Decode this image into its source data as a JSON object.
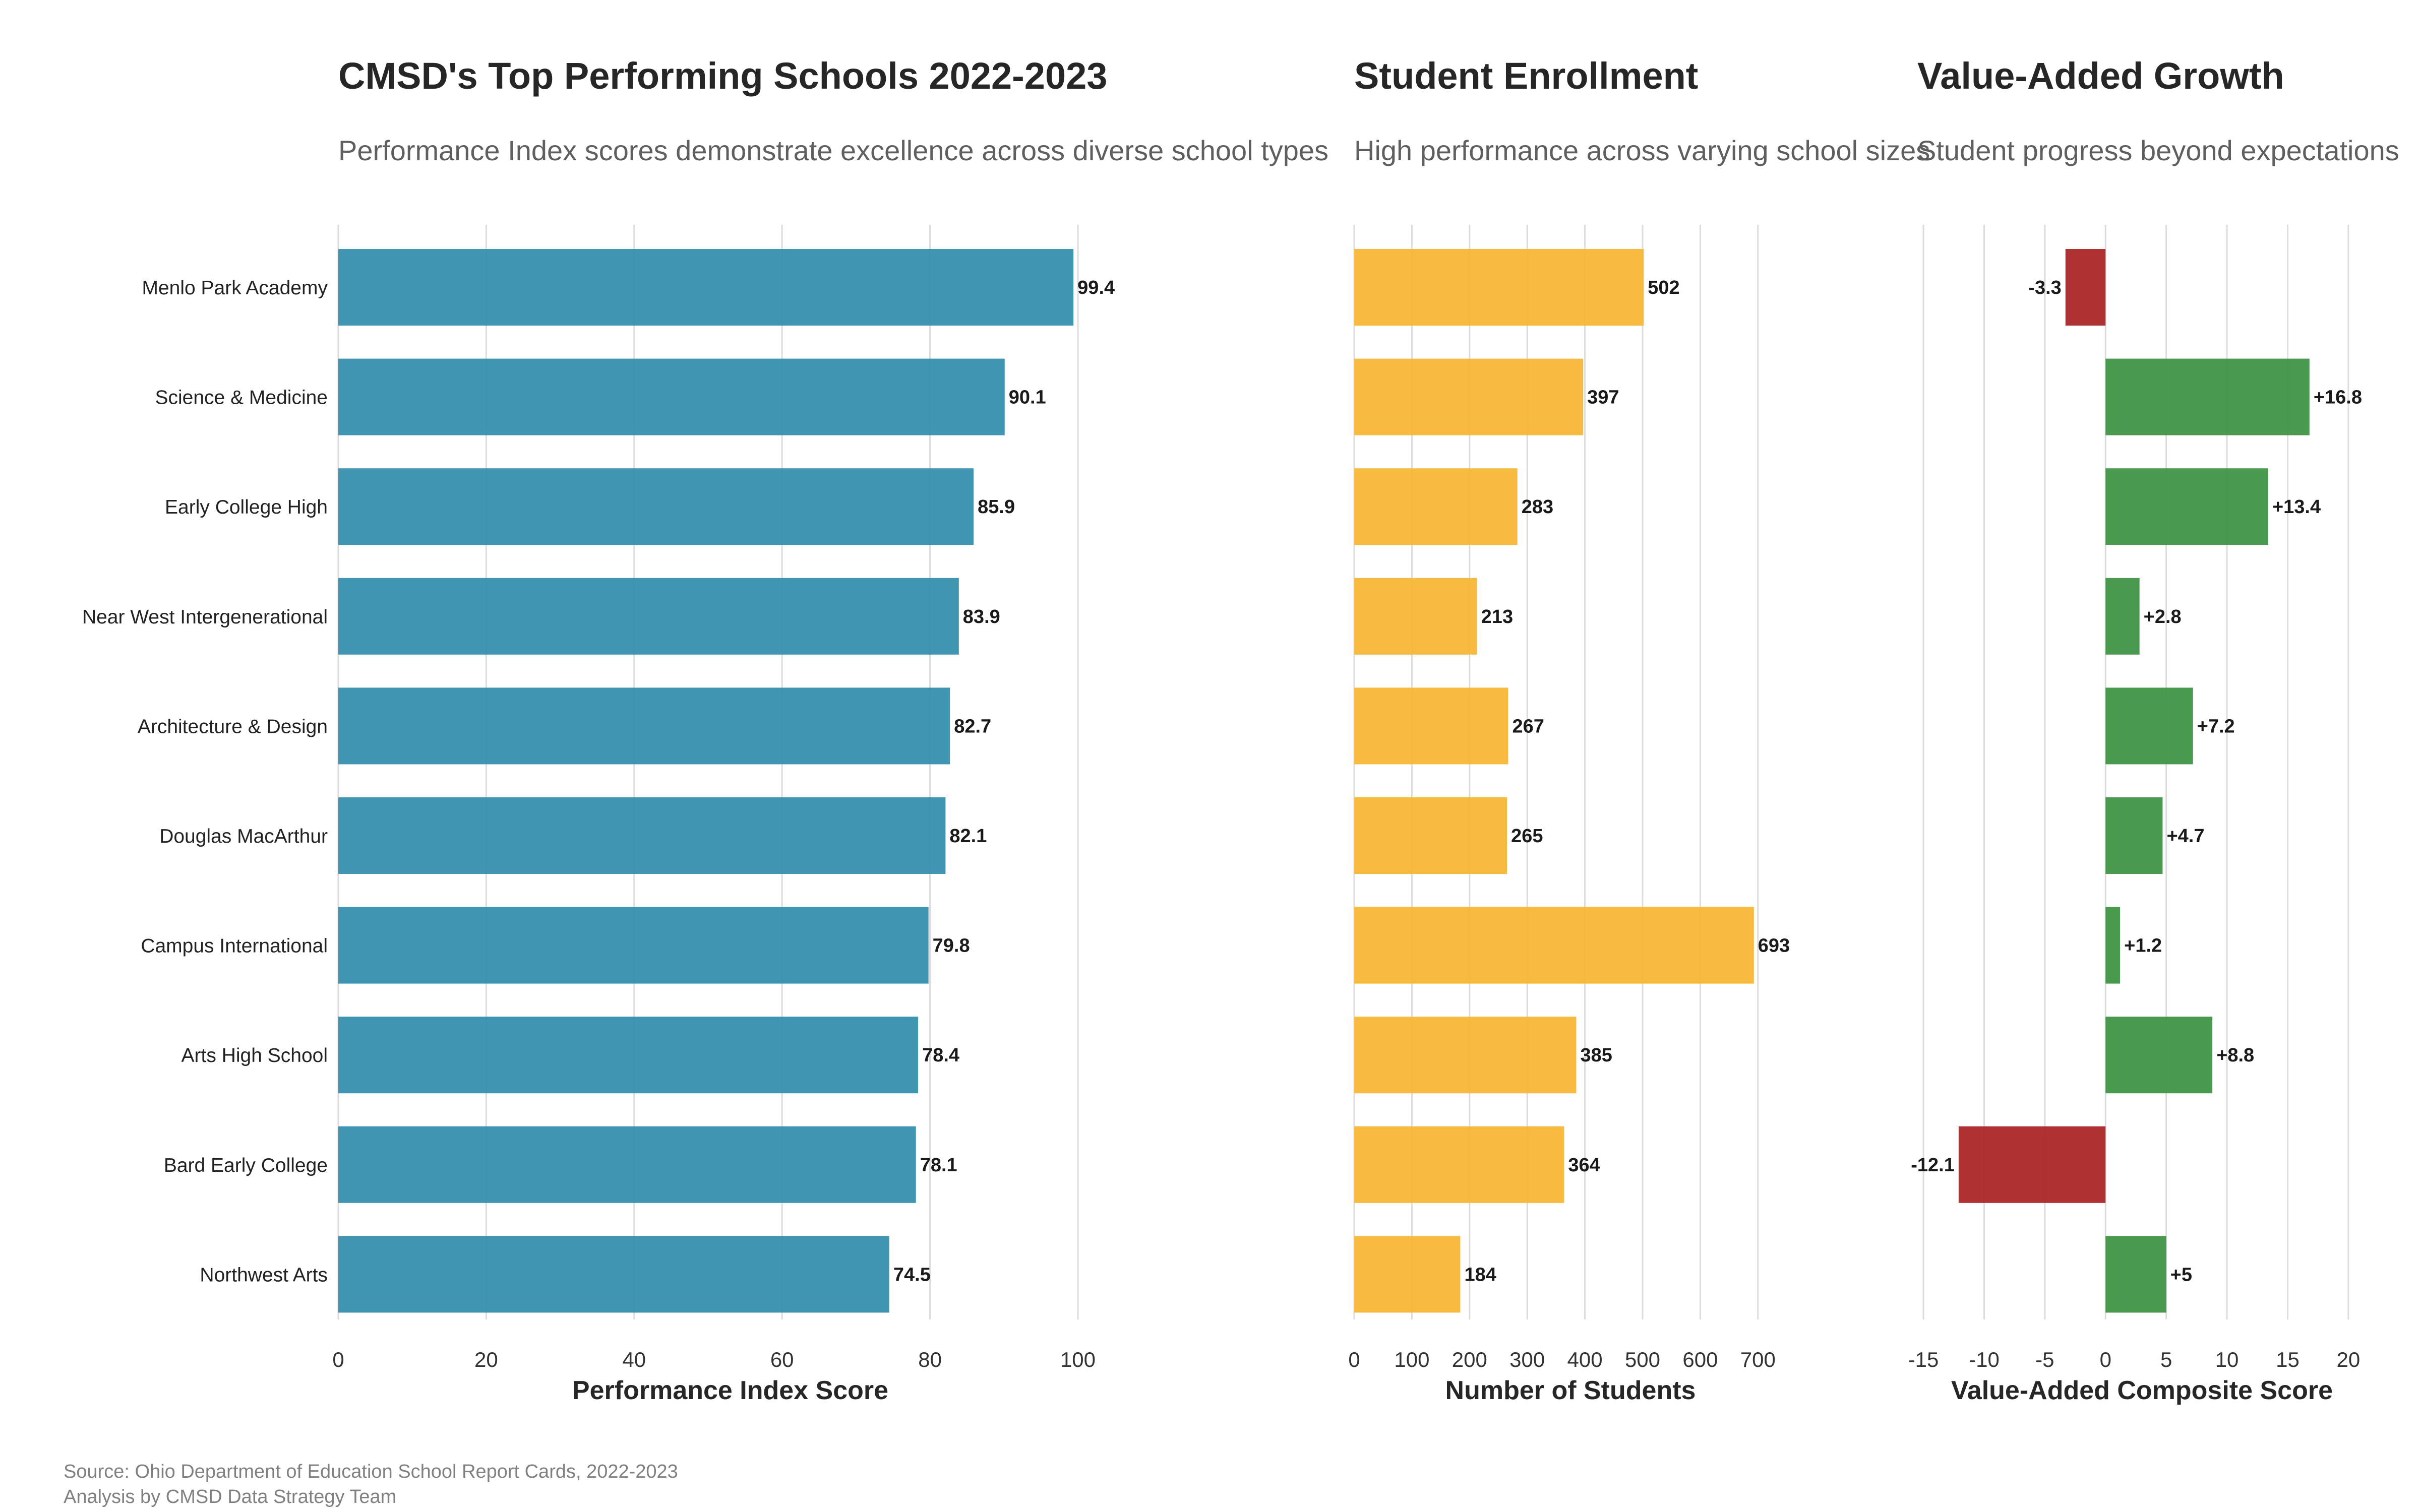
{
  "footer": {
    "source": "Source: Ohio Department of Education School Report Cards, 2022-2023",
    "analysis": "Analysis by CMSD Data Strategy Team"
  },
  "chart_data": [
    {
      "type": "bar",
      "orientation": "horizontal",
      "title": "CMSD's Top Performing Schools 2022-2023",
      "subtitle": "Performance Index scores demonstrate excellence across diverse school types",
      "xlabel": "Performance Index Score",
      "xlim": [
        0,
        106
      ],
      "xticks": [
        0,
        20,
        40,
        60,
        80,
        100
      ],
      "grid": true,
      "color": "#2f8dab",
      "categories": [
        "Menlo Park Academy",
        "Science & Medicine",
        "Early College High",
        "Near West Intergenerational",
        "Architecture & Design",
        "Douglas MacArthur",
        "Campus International",
        "Arts High School",
        "Bard Early College",
        "Northwest Arts"
      ],
      "values": [
        99.4,
        90.1,
        85.9,
        83.9,
        82.7,
        82.1,
        79.8,
        78.4,
        78.1,
        74.5
      ],
      "labels": [
        "99.4",
        "90.1",
        "85.9",
        "83.9",
        "82.7",
        "82.1",
        "79.8",
        "78.4",
        "78.1",
        "74.5"
      ]
    },
    {
      "type": "bar",
      "orientation": "horizontal",
      "title": "Student Enrollment",
      "subtitle": "High performance across varying school sizes",
      "xlabel": "Number of Students",
      "xlim": [
        0,
        750
      ],
      "xticks": [
        0,
        100,
        200,
        300,
        400,
        500,
        600,
        700
      ],
      "grid": true,
      "color": "#f9b430",
      "categories": [
        "Menlo Park Academy",
        "Science & Medicine",
        "Early College High",
        "Near West Intergenerational",
        "Architecture & Design",
        "Douglas MacArthur",
        "Campus International",
        "Arts High School",
        "Bard Early College",
        "Northwest Arts"
      ],
      "values": [
        502,
        397,
        283,
        213,
        267,
        265,
        693,
        385,
        364,
        184
      ],
      "labels": [
        "502",
        "397",
        "283",
        "213",
        "267",
        "265",
        "693",
        "385",
        "364",
        "184"
      ]
    },
    {
      "type": "bar",
      "orientation": "horizontal",
      "title": "Value-Added Growth",
      "subtitle": "Student progress beyond expectations",
      "xlabel": "Value-Added Composite Score",
      "xlim": [
        -15.5,
        21.5
      ],
      "xticks": [
        -15,
        -10,
        -5,
        0,
        5,
        10,
        15,
        20
      ],
      "grid": true,
      "color_positive": "#3a9140",
      "color_negative": "#a91f23",
      "categories": [
        "Menlo Park Academy",
        "Science & Medicine",
        "Early College High",
        "Near West Intergenerational",
        "Architecture & Design",
        "Douglas MacArthur",
        "Campus International",
        "Arts High School",
        "Bard Early College",
        "Northwest Arts"
      ],
      "values": [
        -3.3,
        16.8,
        13.4,
        2.8,
        7.2,
        4.7,
        1.2,
        8.8,
        -12.1,
        5
      ],
      "labels": [
        "-3.3",
        "+16.8",
        "+13.4",
        "+2.8",
        "+7.2",
        "+4.7",
        "+1.2",
        "+8.8",
        "-12.1",
        "+5"
      ]
    }
  ]
}
